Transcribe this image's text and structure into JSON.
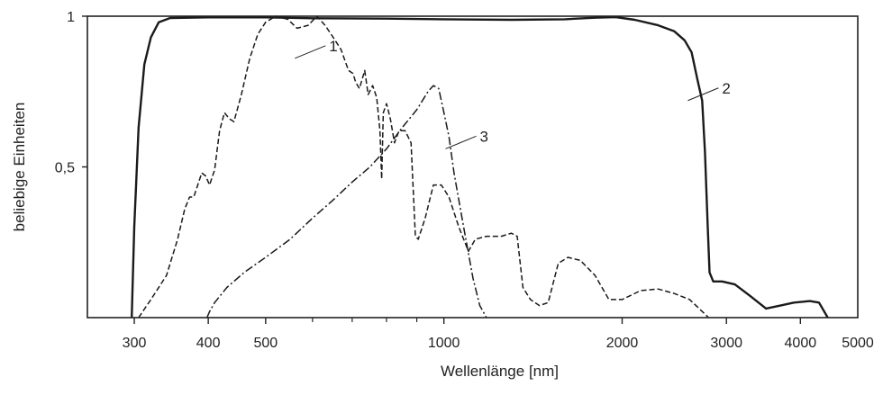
{
  "chart_data": {
    "type": "line",
    "xlabel": "Wellenlänge [nm]",
    "ylabel": "beliebige Einheiten",
    "x_scale": "log",
    "xlim": [
      250,
      5000
    ],
    "ylim": [
      0,
      1
    ],
    "x_ticks": [
      {
        "value": 300,
        "label": "300"
      },
      {
        "value": 400,
        "label": "400"
      },
      {
        "value": 500,
        "label": "500"
      },
      {
        "value": 1000,
        "label": "1000"
      },
      {
        "value": 2000,
        "label": "2000"
      },
      {
        "value": 3000,
        "label": "3000"
      },
      {
        "value": 4000,
        "label": "4000"
      },
      {
        "value": 5000,
        "label": "5000"
      }
    ],
    "x_minor_ticks": [
      600,
      700,
      800,
      900
    ],
    "y_ticks": [
      {
        "value": 0.5,
        "label": "0,5"
      },
      {
        "value": 1,
        "label": "1"
      }
    ],
    "grid": false,
    "series": [
      {
        "name": "1",
        "style": "dashed",
        "label_at": [
          640,
          0.89
        ],
        "points": [
          [
            305,
            0
          ],
          [
            320,
            0.06
          ],
          [
            340,
            0.14
          ],
          [
            355,
            0.26
          ],
          [
            365,
            0.36
          ],
          [
            372,
            0.4
          ],
          [
            378,
            0.4
          ],
          [
            384,
            0.44
          ],
          [
            390,
            0.48
          ],
          [
            396,
            0.47
          ],
          [
            402,
            0.44
          ],
          [
            410,
            0.49
          ],
          [
            418,
            0.62
          ],
          [
            426,
            0.68
          ],
          [
            434,
            0.66
          ],
          [
            442,
            0.65
          ],
          [
            455,
            0.74
          ],
          [
            470,
            0.86
          ],
          [
            485,
            0.94
          ],
          [
            500,
            0.98
          ],
          [
            520,
            1.0
          ],
          [
            545,
            0.99
          ],
          [
            565,
            0.96
          ],
          [
            590,
            0.97
          ],
          [
            610,
            1.0
          ],
          [
            630,
            0.97
          ],
          [
            650,
            0.93
          ],
          [
            670,
            0.89
          ],
          [
            690,
            0.82
          ],
          [
            702,
            0.81
          ],
          [
            710,
            0.78
          ],
          [
            720,
            0.76
          ],
          [
            735,
            0.82
          ],
          [
            745,
            0.74
          ],
          [
            758,
            0.77
          ],
          [
            770,
            0.73
          ],
          [
            780,
            0.62
          ],
          [
            785,
            0.46
          ],
          [
            790,
            0.68
          ],
          [
            800,
            0.71
          ],
          [
            812,
            0.66
          ],
          [
            825,
            0.58
          ],
          [
            840,
            0.62
          ],
          [
            860,
            0.62
          ],
          [
            880,
            0.58
          ],
          [
            895,
            0.27
          ],
          [
            905,
            0.26
          ],
          [
            930,
            0.33
          ],
          [
            960,
            0.44
          ],
          [
            990,
            0.44
          ],
          [
            1020,
            0.4
          ],
          [
            1060,
            0.3
          ],
          [
            1080,
            0.26
          ],
          [
            1100,
            0.22
          ],
          [
            1130,
            0.26
          ],
          [
            1180,
            0.27
          ],
          [
            1250,
            0.27
          ],
          [
            1300,
            0.28
          ],
          [
            1330,
            0.27
          ],
          [
            1360,
            0.1
          ],
          [
            1400,
            0.06
          ],
          [
            1450,
            0.04
          ],
          [
            1500,
            0.05
          ],
          [
            1560,
            0.18
          ],
          [
            1620,
            0.2
          ],
          [
            1700,
            0.19
          ],
          [
            1800,
            0.14
          ],
          [
            1900,
            0.06
          ],
          [
            2000,
            0.06
          ],
          [
            2150,
            0.09
          ],
          [
            2300,
            0.095
          ],
          [
            2450,
            0.08
          ],
          [
            2600,
            0.06
          ],
          [
            2800,
            0.0
          ]
        ]
      },
      {
        "name": "2",
        "style": "solid",
        "label_at": [
          2950,
          0.75
        ],
        "points": [
          [
            297,
            0
          ],
          [
            300,
            0.3
          ],
          [
            305,
            0.63
          ],
          [
            312,
            0.84
          ],
          [
            320,
            0.93
          ],
          [
            330,
            0.98
          ],
          [
            345,
            0.994
          ],
          [
            400,
            0.996
          ],
          [
            500,
            0.996
          ],
          [
            600,
            0.993
          ],
          [
            800,
            0.992
          ],
          [
            1000,
            0.99
          ],
          [
            1300,
            0.988
          ],
          [
            1600,
            0.99
          ],
          [
            1800,
            0.995
          ],
          [
            1950,
            0.997
          ],
          [
            2100,
            0.988
          ],
          [
            2300,
            0.97
          ],
          [
            2450,
            0.95
          ],
          [
            2550,
            0.92
          ],
          [
            2620,
            0.88
          ],
          [
            2680,
            0.79
          ],
          [
            2730,
            0.72
          ],
          [
            2760,
            0.55
          ],
          [
            2790,
            0.3
          ],
          [
            2810,
            0.15
          ],
          [
            2850,
            0.12
          ],
          [
            2950,
            0.12
          ],
          [
            3100,
            0.11
          ],
          [
            3300,
            0.07
          ],
          [
            3500,
            0.03
          ],
          [
            3700,
            0.04
          ],
          [
            3900,
            0.05
          ],
          [
            4150,
            0.055
          ],
          [
            4300,
            0.05
          ],
          [
            4450,
            0.0
          ]
        ]
      },
      {
        "name": "3",
        "style": "dashdot",
        "label_at": [
          1150,
          0.59
        ],
        "points": [
          [
            398,
            0
          ],
          [
            402,
            0.02
          ],
          [
            410,
            0.05
          ],
          [
            430,
            0.1
          ],
          [
            460,
            0.15
          ],
          [
            500,
            0.2
          ],
          [
            550,
            0.26
          ],
          [
            600,
            0.33
          ],
          [
            650,
            0.39
          ],
          [
            700,
            0.45
          ],
          [
            750,
            0.5
          ],
          [
            800,
            0.56
          ],
          [
            850,
            0.63
          ],
          [
            900,
            0.69
          ],
          [
            940,
            0.75
          ],
          [
            960,
            0.77
          ],
          [
            980,
            0.76
          ],
          [
            1000,
            0.68
          ],
          [
            1020,
            0.6
          ],
          [
            1040,
            0.48
          ],
          [
            1080,
            0.3
          ],
          [
            1120,
            0.13
          ],
          [
            1150,
            0.04
          ],
          [
            1180,
            0.0
          ]
        ]
      }
    ]
  }
}
